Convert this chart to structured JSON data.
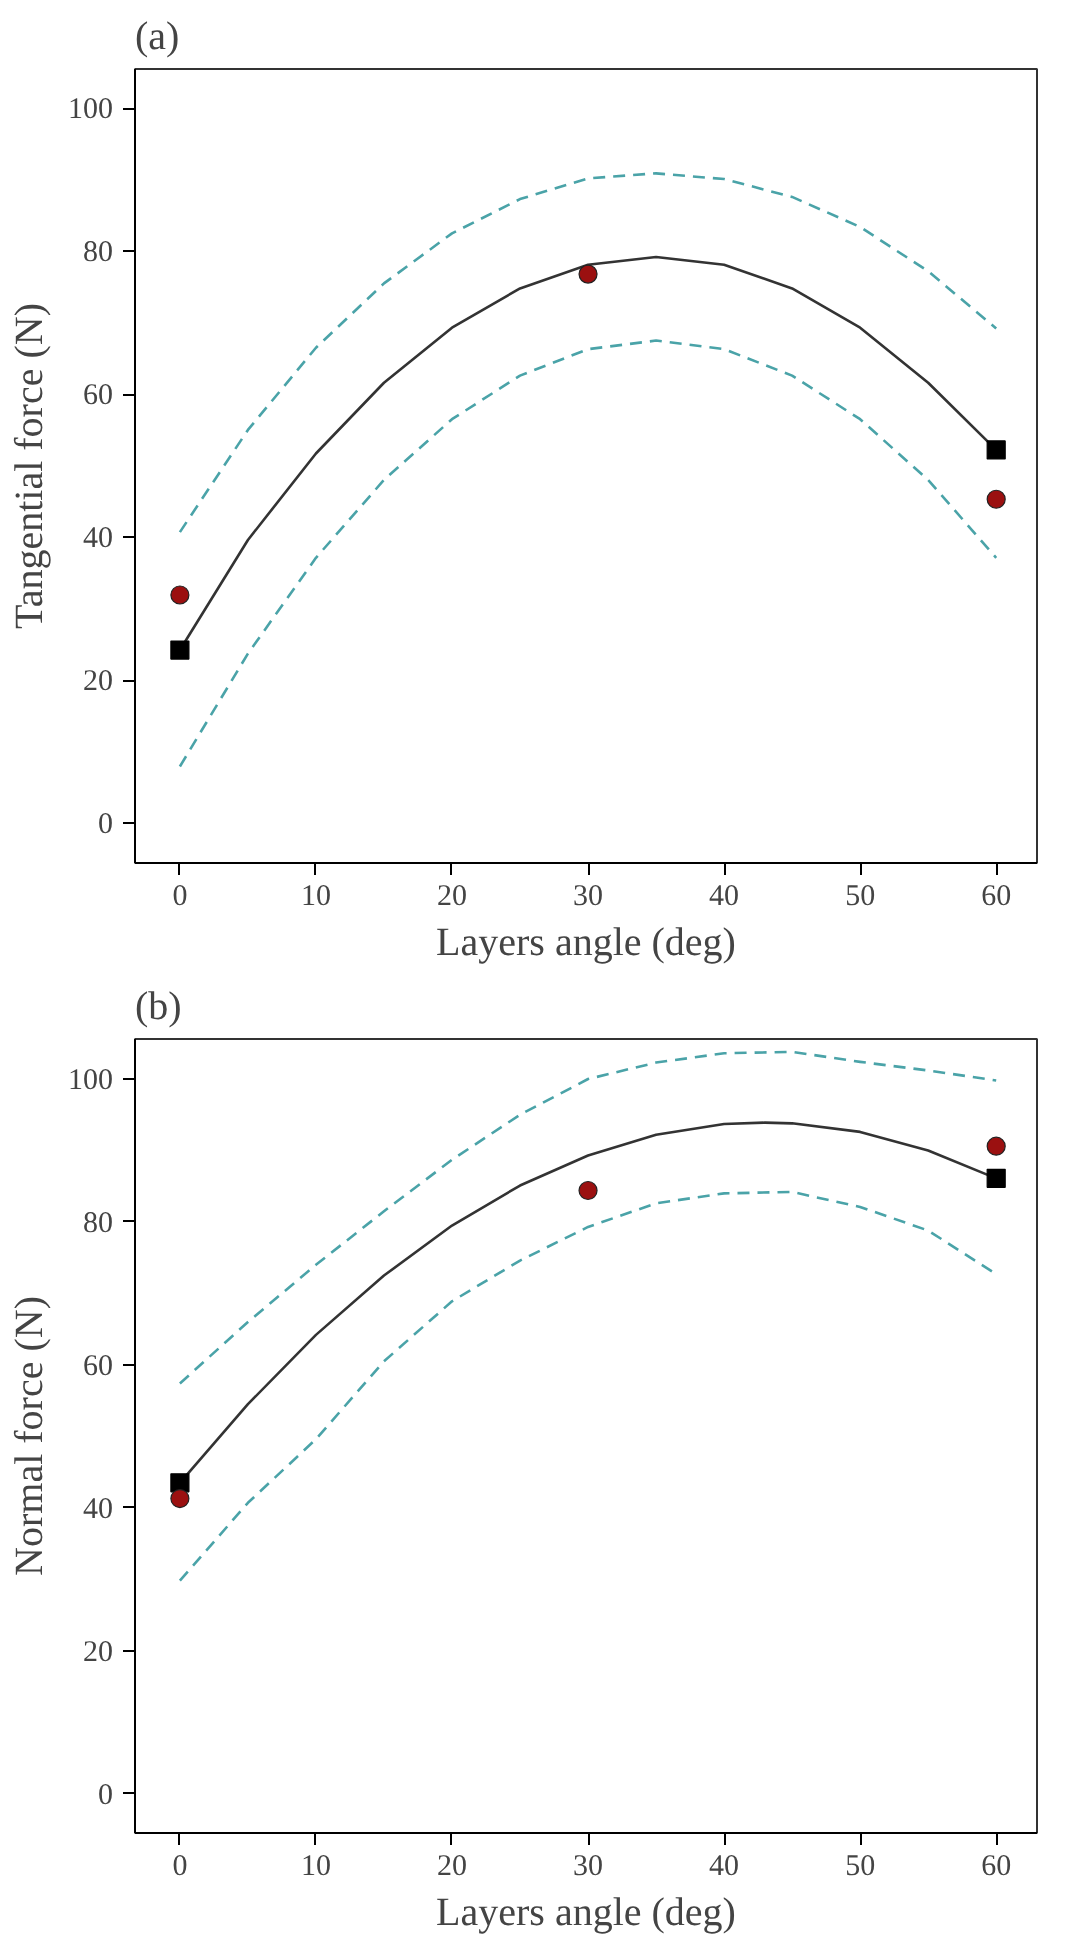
{
  "chart_data": [
    {
      "type": "line",
      "title": "(a)",
      "xlabel": "Layers angle (deg)",
      "ylabel": "Tangential force (N)",
      "xlim": [
        -3.3,
        63
      ],
      "ylim": [
        -5.6,
        105.5
      ],
      "xticks": [
        0,
        10,
        20,
        30,
        40,
        50,
        60
      ],
      "yticks": [
        0,
        20,
        40,
        60,
        80,
        100
      ],
      "grid": false,
      "series": [
        {
          "color": "#333333",
          "line_style": "solid",
          "x": [
            0,
            5,
            10,
            15,
            20,
            25,
            30,
            35,
            40,
            45,
            50,
            55,
            60
          ],
          "values": [
            24.2,
            39.6,
            51.7,
            61.6,
            69.3,
            74.8,
            78.1,
            79.2,
            78.1,
            74.8,
            69.3,
            61.6,
            52.2
          ]
        },
        {
          "color": "#4aa3a8",
          "line_style": "dashed",
          "x": [
            0,
            5,
            10,
            15,
            20,
            25,
            30,
            35,
            40,
            45,
            50,
            55,
            60
          ],
          "values": [
            40.7,
            55,
            66.5,
            75.5,
            82.5,
            87.3,
            90.2,
            90.9,
            90.1,
            87.6,
            83.4,
            77.2,
            69.2
          ]
        },
        {
          "color": "#4aa3a8",
          "line_style": "dashed",
          "x": [
            0,
            5,
            10,
            15,
            20,
            25,
            30,
            35,
            40,
            45,
            50,
            55,
            60
          ],
          "values": [
            7.9,
            23.7,
            37.1,
            48,
            56.5,
            62.6,
            66.3,
            67.5,
            66.3,
            62.6,
            56.5,
            48,
            37.1
          ]
        },
        {
          "type": "scatter",
          "color": "#000000",
          "marker": "square",
          "x": [
            0,
            60
          ],
          "values": [
            24.2,
            52.2
          ]
        },
        {
          "type": "scatter",
          "color": "#9b1010",
          "marker": "circle",
          "x": [
            0,
            30,
            60
          ],
          "values": [
            31.9,
            76.8,
            45.3
          ]
        }
      ]
    },
    {
      "type": "line",
      "title": "(b)",
      "xlabel": "Layers angle (deg)",
      "ylabel": "Normal force (N)",
      "xlim": [
        -3.3,
        63
      ],
      "ylim": [
        -5.5,
        105.6
      ],
      "xticks": [
        0,
        10,
        20,
        30,
        40,
        50,
        60
      ],
      "yticks": [
        0,
        20,
        40,
        60,
        80,
        100
      ],
      "grid": false,
      "series": [
        {
          "color": "#333333",
          "line_style": "solid",
          "x": [
            0,
            5,
            10,
            15,
            20,
            25,
            30,
            35,
            40,
            43,
            45,
            50,
            55,
            60
          ],
          "values": [
            43.5,
            54.5,
            64.2,
            72.5,
            79.5,
            85.1,
            89.3,
            92.2,
            93.7,
            93.9,
            93.8,
            92.6,
            90,
            86.1
          ]
        },
        {
          "color": "#4aa3a8",
          "line_style": "dashed",
          "x": [
            0,
            5,
            10,
            15,
            20,
            25,
            30,
            35,
            40,
            45,
            50,
            55,
            60
          ],
          "values": [
            57.4,
            66,
            74,
            81.5,
            88.7,
            95,
            100,
            102.3,
            103.6,
            103.8,
            102.4,
            101.2,
            99.8
          ]
        },
        {
          "color": "#4aa3a8",
          "line_style": "dashed",
          "x": [
            0,
            5,
            10,
            15,
            20,
            25,
            30,
            35,
            40,
            45,
            50,
            55,
            60
          ],
          "values": [
            29.8,
            40.7,
            49.6,
            60.5,
            68.9,
            74.6,
            79.3,
            82.6,
            84,
            84.2,
            82.1,
            78.8,
            72.7
          ]
        },
        {
          "type": "scatter",
          "color": "#000000",
          "marker": "square",
          "x": [
            0,
            60
          ],
          "values": [
            43.5,
            86.1
          ]
        },
        {
          "type": "scatter",
          "color": "#9b1010",
          "marker": "circle",
          "x": [
            0,
            30,
            60
          ],
          "values": [
            41.3,
            84.4,
            90.6
          ]
        }
      ]
    }
  ]
}
